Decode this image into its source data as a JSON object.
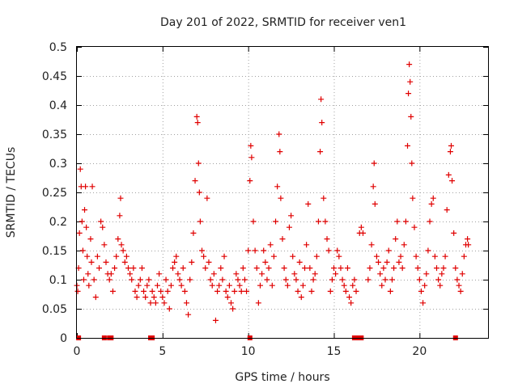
{
  "chart_data": {
    "type": "scatter",
    "title": "Day 201 of 2022, SRMTID for receiver ven1",
    "xlabel": "GPS time / hours",
    "ylabel": "SRMTID / TECUs",
    "xlim": [
      0,
      24
    ],
    "ylim": [
      0,
      0.5
    ],
    "xticks": [
      0,
      5,
      10,
      15,
      20
    ],
    "xtick_labels": [
      "0",
      "5",
      "10",
      "15",
      "20"
    ],
    "yticks": [
      0,
      0.05,
      0.1,
      0.15,
      0.2,
      0.25,
      0.3,
      0.35,
      0.4,
      0.45,
      0.5
    ],
    "ytick_labels": [
      "0",
      "0.05",
      "0.1",
      "0.15",
      "0.2",
      "0.25",
      "0.3",
      "0.35",
      "0.4",
      "0.45",
      "0.5"
    ],
    "grid": true,
    "marker": "plus",
    "color": "#e00000",
    "series": [
      {
        "name": "ven1",
        "points": [
          [
            0.0,
            0.09
          ],
          [
            0.05,
            0.08
          ],
          [
            0.1,
            0.12
          ],
          [
            0.15,
            0.18
          ],
          [
            0.2,
            0.29
          ],
          [
            0.25,
            0.26
          ],
          [
            0.3,
            0.2
          ],
          [
            0.35,
            0.15
          ],
          [
            0.4,
            0.1
          ],
          [
            0.45,
            0.22
          ],
          [
            0.5,
            0.26
          ],
          [
            0.55,
            0.19
          ],
          [
            0.6,
            0.14
          ],
          [
            0.65,
            0.11
          ],
          [
            0.7,
            0.09
          ],
          [
            0.8,
            0.17
          ],
          [
            0.85,
            0.13
          ],
          [
            0.9,
            0.26
          ],
          [
            1.0,
            0.1
          ],
          [
            1.1,
            0.07
          ],
          [
            1.2,
            0.14
          ],
          [
            1.3,
            0.12
          ],
          [
            1.4,
            0.2
          ],
          [
            1.5,
            0.19
          ],
          [
            1.6,
            0.16
          ],
          [
            1.7,
            0.13
          ],
          [
            1.8,
            0.11
          ],
          [
            1.9,
            0.1
          ],
          [
            2.0,
            0.11
          ],
          [
            2.1,
            0.08
          ],
          [
            2.2,
            0.12
          ],
          [
            2.3,
            0.14
          ],
          [
            2.4,
            0.17
          ],
          [
            2.5,
            0.21
          ],
          [
            2.55,
            0.24
          ],
          [
            2.6,
            0.16
          ],
          [
            2.7,
            0.15
          ],
          [
            2.8,
            0.13
          ],
          [
            2.9,
            0.14
          ],
          [
            3.0,
            0.12
          ],
          [
            3.1,
            0.11
          ],
          [
            3.2,
            0.1
          ],
          [
            3.3,
            0.12
          ],
          [
            3.4,
            0.08
          ],
          [
            3.5,
            0.07
          ],
          [
            3.6,
            0.09
          ],
          [
            3.7,
            0.1
          ],
          [
            3.8,
            0.12
          ],
          [
            3.9,
            0.08
          ],
          [
            4.0,
            0.07
          ],
          [
            4.1,
            0.09
          ],
          [
            4.2,
            0.1
          ],
          [
            4.3,
            0.06
          ],
          [
            4.4,
            0.08
          ],
          [
            4.5,
            0.07
          ],
          [
            4.6,
            0.06
          ],
          [
            4.7,
            0.09
          ],
          [
            4.8,
            0.11
          ],
          [
            4.9,
            0.08
          ],
          [
            5.0,
            0.07
          ],
          [
            5.1,
            0.06
          ],
          [
            5.2,
            0.1
          ],
          [
            5.3,
            0.08
          ],
          [
            5.4,
            0.05
          ],
          [
            5.5,
            0.09
          ],
          [
            5.6,
            0.12
          ],
          [
            5.7,
            0.13
          ],
          [
            5.8,
            0.14
          ],
          [
            5.9,
            0.11
          ],
          [
            6.0,
            0.1
          ],
          [
            6.1,
            0.09
          ],
          [
            6.2,
            0.12
          ],
          [
            6.3,
            0.08
          ],
          [
            6.4,
            0.06
          ],
          [
            6.5,
            0.04
          ],
          [
            6.6,
            0.1
          ],
          [
            6.7,
            0.13
          ],
          [
            6.8,
            0.18
          ],
          [
            6.9,
            0.27
          ],
          [
            7.0,
            0.38
          ],
          [
            7.05,
            0.37
          ],
          [
            7.1,
            0.3
          ],
          [
            7.15,
            0.25
          ],
          [
            7.2,
            0.2
          ],
          [
            7.3,
            0.15
          ],
          [
            7.4,
            0.14
          ],
          [
            7.5,
            0.12
          ],
          [
            7.6,
            0.24
          ],
          [
            7.7,
            0.13
          ],
          [
            7.8,
            0.1
          ],
          [
            7.9,
            0.09
          ],
          [
            8.0,
            0.11
          ],
          [
            8.1,
            0.03
          ],
          [
            8.2,
            0.08
          ],
          [
            8.3,
            0.09
          ],
          [
            8.4,
            0.12
          ],
          [
            8.5,
            0.1
          ],
          [
            8.6,
            0.14
          ],
          [
            8.7,
            0.08
          ],
          [
            8.8,
            0.07
          ],
          [
            8.9,
            0.09
          ],
          [
            9.0,
            0.06
          ],
          [
            9.1,
            0.05
          ],
          [
            9.2,
            0.08
          ],
          [
            9.3,
            0.11
          ],
          [
            9.4,
            0.1
          ],
          [
            9.5,
            0.09
          ],
          [
            9.6,
            0.08
          ],
          [
            9.7,
            0.12
          ],
          [
            9.8,
            0.1
          ],
          [
            9.9,
            0.08
          ],
          [
            10.0,
            0.15
          ],
          [
            10.1,
            0.27
          ],
          [
            10.15,
            0.33
          ],
          [
            10.2,
            0.31
          ],
          [
            10.3,
            0.2
          ],
          [
            10.4,
            0.15
          ],
          [
            10.5,
            0.12
          ],
          [
            10.6,
            0.06
          ],
          [
            10.7,
            0.09
          ],
          [
            10.8,
            0.11
          ],
          [
            10.9,
            0.15
          ],
          [
            11.0,
            0.13
          ],
          [
            11.1,
            0.1
          ],
          [
            11.2,
            0.12
          ],
          [
            11.3,
            0.16
          ],
          [
            11.4,
            0.09
          ],
          [
            11.5,
            0.14
          ],
          [
            11.6,
            0.2
          ],
          [
            11.7,
            0.26
          ],
          [
            11.8,
            0.35
          ],
          [
            11.85,
            0.32
          ],
          [
            11.9,
            0.24
          ],
          [
            12.0,
            0.17
          ],
          [
            12.1,
            0.12
          ],
          [
            12.2,
            0.1
          ],
          [
            12.3,
            0.09
          ],
          [
            12.4,
            0.19
          ],
          [
            12.5,
            0.21
          ],
          [
            12.6,
            0.14
          ],
          [
            12.7,
            0.11
          ],
          [
            12.8,
            0.1
          ],
          [
            12.9,
            0.08
          ],
          [
            13.0,
            0.13
          ],
          [
            13.1,
            0.07
          ],
          [
            13.2,
            0.09
          ],
          [
            13.3,
            0.12
          ],
          [
            13.4,
            0.16
          ],
          [
            13.5,
            0.23
          ],
          [
            13.6,
            0.12
          ],
          [
            13.7,
            0.08
          ],
          [
            13.8,
            0.1
          ],
          [
            13.9,
            0.11
          ],
          [
            14.0,
            0.14
          ],
          [
            14.1,
            0.2
          ],
          [
            14.2,
            0.32
          ],
          [
            14.25,
            0.41
          ],
          [
            14.3,
            0.37
          ],
          [
            14.4,
            0.24
          ],
          [
            14.5,
            0.2
          ],
          [
            14.6,
            0.17
          ],
          [
            14.7,
            0.15
          ],
          [
            14.8,
            0.08
          ],
          [
            14.9,
            0.1
          ],
          [
            15.0,
            0.12
          ],
          [
            15.1,
            0.11
          ],
          [
            15.2,
            0.15
          ],
          [
            15.3,
            0.14
          ],
          [
            15.4,
            0.12
          ],
          [
            15.5,
            0.1
          ],
          [
            15.6,
            0.09
          ],
          [
            15.7,
            0.08
          ],
          [
            15.8,
            0.12
          ],
          [
            15.9,
            0.07
          ],
          [
            16.0,
            0.06
          ],
          [
            16.1,
            0.09
          ],
          [
            16.2,
            0.1
          ],
          [
            16.3,
            0.08
          ],
          [
            16.5,
            0.18
          ],
          [
            16.6,
            0.19
          ],
          [
            16.7,
            0.18
          ],
          [
            17.0,
            0.1
          ],
          [
            17.1,
            0.12
          ],
          [
            17.2,
            0.16
          ],
          [
            17.3,
            0.26
          ],
          [
            17.35,
            0.3
          ],
          [
            17.4,
            0.23
          ],
          [
            17.5,
            0.14
          ],
          [
            17.6,
            0.13
          ],
          [
            17.7,
            0.11
          ],
          [
            17.8,
            0.09
          ],
          [
            17.9,
            0.12
          ],
          [
            18.0,
            0.1
          ],
          [
            18.1,
            0.13
          ],
          [
            18.2,
            0.15
          ],
          [
            18.3,
            0.08
          ],
          [
            18.4,
            0.1
          ],
          [
            18.5,
            0.12
          ],
          [
            18.6,
            0.17
          ],
          [
            18.7,
            0.2
          ],
          [
            18.8,
            0.13
          ],
          [
            18.9,
            0.14
          ],
          [
            19.0,
            0.12
          ],
          [
            19.1,
            0.16
          ],
          [
            19.2,
            0.2
          ],
          [
            19.3,
            0.33
          ],
          [
            19.35,
            0.42
          ],
          [
            19.4,
            0.47
          ],
          [
            19.45,
            0.44
          ],
          [
            19.5,
            0.38
          ],
          [
            19.55,
            0.3
          ],
          [
            19.6,
            0.24
          ],
          [
            19.7,
            0.19
          ],
          [
            19.8,
            0.14
          ],
          [
            19.9,
            0.12
          ],
          [
            20.0,
            0.1
          ],
          [
            20.1,
            0.08
          ],
          [
            20.2,
            0.06
          ],
          [
            20.3,
            0.09
          ],
          [
            20.4,
            0.11
          ],
          [
            20.5,
            0.15
          ],
          [
            20.6,
            0.2
          ],
          [
            20.7,
            0.23
          ],
          [
            20.8,
            0.24
          ],
          [
            20.9,
            0.14
          ],
          [
            21.0,
            0.12
          ],
          [
            21.1,
            0.1
          ],
          [
            21.2,
            0.09
          ],
          [
            21.3,
            0.11
          ],
          [
            21.4,
            0.12
          ],
          [
            21.5,
            0.14
          ],
          [
            21.6,
            0.22
          ],
          [
            21.7,
            0.28
          ],
          [
            21.8,
            0.32
          ],
          [
            21.85,
            0.33
          ],
          [
            21.9,
            0.27
          ],
          [
            22.0,
            0.18
          ],
          [
            22.1,
            0.12
          ],
          [
            22.2,
            0.1
          ],
          [
            22.3,
            0.09
          ],
          [
            22.4,
            0.08
          ],
          [
            22.5,
            0.11
          ],
          [
            22.6,
            0.14
          ],
          [
            22.7,
            0.16
          ],
          [
            22.8,
            0.17
          ],
          [
            22.85,
            0.16
          ]
        ]
      },
      {
        "name": "zero-markers",
        "marker": "square",
        "points": [
          [
            0.1,
            0
          ],
          [
            1.6,
            0
          ],
          [
            1.9,
            0
          ],
          [
            2.0,
            0
          ],
          [
            4.3,
            0
          ],
          [
            4.4,
            0
          ],
          [
            10.1,
            0
          ],
          [
            16.2,
            0
          ],
          [
            16.4,
            0
          ],
          [
            16.6,
            0
          ],
          [
            22.1,
            0
          ]
        ]
      }
    ]
  }
}
